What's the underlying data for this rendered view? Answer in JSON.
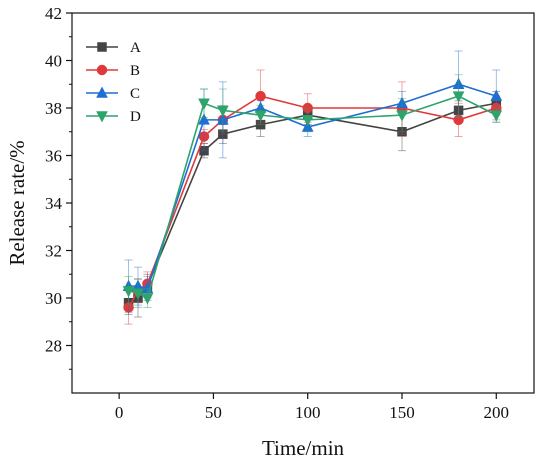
{
  "chart_data": {
    "type": "line",
    "title": "",
    "xlabel": "Time/min",
    "ylabel": "Release rate/%",
    "xlim": [
      -25,
      220
    ],
    "ylim": [
      26,
      42
    ],
    "xticks": [
      0,
      50,
      100,
      150,
      200
    ],
    "yticks": [
      28,
      30,
      32,
      34,
      36,
      38,
      40,
      42
    ],
    "xtick_labels": [
      "0",
      "50",
      "100",
      "150",
      "200"
    ],
    "ytick_labels": [
      "28",
      "30",
      "32",
      "34",
      "36",
      "38",
      "40",
      "42"
    ],
    "grid": false,
    "legend_position": "top-left",
    "x": [
      5,
      10,
      15,
      45,
      55,
      75,
      100,
      150,
      180,
      200
    ],
    "series": [
      {
        "name": "A",
        "color": "#444444",
        "marker": "square",
        "values": [
          29.8,
          30.0,
          30.5,
          36.2,
          36.9,
          37.3,
          37.7,
          37.0,
          37.9,
          38.2
        ],
        "errors": [
          0.5,
          0.8,
          0.5,
          0.3,
          0.4,
          0.5,
          0.4,
          0.8,
          0.4,
          0.5
        ]
      },
      {
        "name": "B",
        "color": "#e0383b",
        "marker": "circle",
        "values": [
          29.6,
          30.3,
          30.6,
          36.8,
          37.5,
          38.5,
          38.0,
          38.0,
          37.5,
          38.0
        ],
        "errors": [
          0.7,
          0.5,
          0.5,
          0.3,
          0.6,
          1.1,
          0.6,
          1.1,
          0.7,
          0.5
        ]
      },
      {
        "name": "C",
        "color": "#1f6fd1",
        "marker": "triangle-up",
        "values": [
          30.5,
          30.5,
          30.4,
          37.5,
          37.5,
          38.0,
          37.2,
          38.2,
          39.0,
          38.5
        ],
        "errors": [
          1.1,
          0.8,
          0.5,
          1.3,
          1.6,
          0.3,
          0.4,
          0.5,
          1.4,
          1.1
        ]
      },
      {
        "name": "D",
        "color": "#2ea36b",
        "marker": "triangle-down",
        "values": [
          30.3,
          30.2,
          30.0,
          38.2,
          37.9,
          37.7,
          37.5,
          37.7,
          38.5,
          37.7
        ],
        "errors": [
          0.6,
          0.6,
          0.4,
          0.6,
          0.9,
          0.4,
          0.5,
          0.7,
          0.9,
          0.3
        ]
      }
    ]
  }
}
